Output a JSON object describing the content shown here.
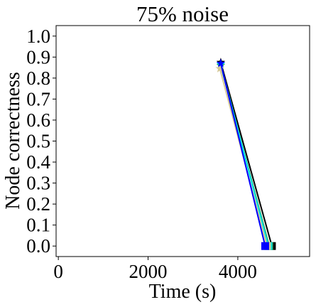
{
  "chart_data": {
    "type": "line",
    "title": "75% noise",
    "xlabel": "Time (s)",
    "ylabel": "Node correctness",
    "xlim": [
      -50,
      5600
    ],
    "ylim": [
      -0.05,
      1.05
    ],
    "x_ticks": [
      0,
      2000,
      4000
    ],
    "x_tick_labels": [
      "0",
      "2000",
      "4000"
    ],
    "y_ticks": [
      0.0,
      0.1,
      0.2,
      0.3,
      0.4,
      0.5,
      0.6,
      0.7,
      0.8,
      0.9,
      1.0
    ],
    "y_tick_labels": [
      "0.0",
      "0.1",
      "0.2",
      "0.3",
      "0.4",
      "0.5",
      "0.6",
      "0.7",
      "0.8",
      "0.9",
      "1.0"
    ],
    "grid": false,
    "series": [
      {
        "color": "#000000",
        "x": [
          3620,
          4760
        ],
        "y": [
          0.875,
          0.0
        ],
        "markers": [
          "star",
          "square"
        ]
      },
      {
        "color": "#2ca05a",
        "x": [
          3620,
          4700
        ],
        "y": [
          0.86,
          0.0
        ],
        "markers": [
          "star",
          "square"
        ]
      },
      {
        "color": "#00e5e5",
        "x": [
          3620,
          4680
        ],
        "y": [
          0.865,
          0.0
        ],
        "markers": [
          "star",
          "square"
        ]
      },
      {
        "color": "#d4c896",
        "x": [
          3600,
          4650
        ],
        "y": [
          0.845,
          0.0
        ],
        "markers": [
          "star",
          "square"
        ]
      },
      {
        "color": "#0000ff",
        "x": [
          3620,
          4610
        ],
        "y": [
          0.87,
          0.0
        ],
        "markers": [
          "star",
          "square"
        ]
      }
    ]
  }
}
